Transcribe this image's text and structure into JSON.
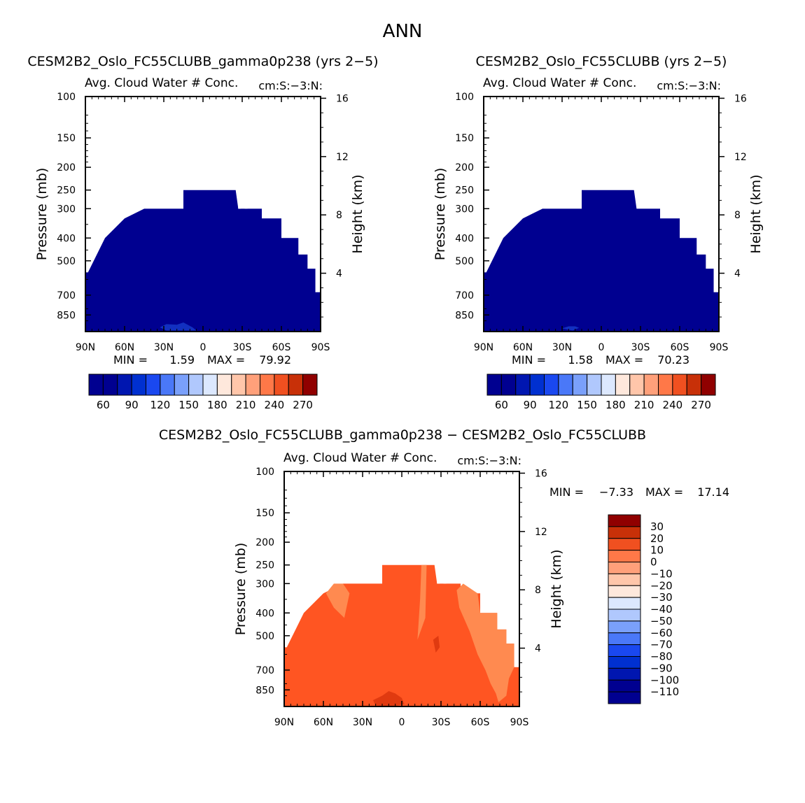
{
  "page_title": "ANN",
  "colors": {
    "base_fill": "#000090",
    "base_fill_low": "#1230c0",
    "diff_fill": "#ff5522",
    "diff_fill_light": "#ff8a50",
    "diff_fill_dark": "#e03a10",
    "base_scale": [
      "#000090",
      "#0016b0",
      "#0030d0",
      "#1a48f0",
      "#4a78f8",
      "#7aa0fb",
      "#b0c8fd",
      "#dce8fe",
      "#fee8dc",
      "#ffc6aa",
      "#ffa07a",
      "#ff7848",
      "#f05020",
      "#c83008",
      "#900000"
    ],
    "diff_scale": [
      "#000090",
      "#0016b0",
      "#0030d0",
      "#1a48f0",
      "#4a78f8",
      "#7aa0fb",
      "#b0c8fd",
      "#dce8fe",
      "#fee8dc",
      "#ffc6aa",
      "#ffa07a",
      "#ff7848",
      "#f05020",
      "#c83008",
      "#900000"
    ]
  },
  "chart_data": [
    {
      "type": "heatmap",
      "id": "panel-left",
      "title": "CESM2B2_Oslo_FC55CLUBB_gamma0p238 (yrs 2−5)",
      "subtitle": "Avg. Cloud Water # Conc.",
      "units": "cm:S:−3:N:",
      "ylabel": "Pressure (mb)",
      "y2label": "Height (km)",
      "x_ticks": [
        "90N",
        "60N",
        "30N",
        "0",
        "30S",
        "60S",
        "90S"
      ],
      "y_ticks": [
        "100",
        "150",
        "200",
        "250",
        "300",
        "400",
        "500",
        "700",
        "850"
      ],
      "y_tick_values": [
        100,
        150,
        200,
        250,
        300,
        400,
        500,
        700,
        850
      ],
      "y2_ticks": [
        "16",
        "12",
        "8",
        "4"
      ],
      "y2_tick_values": [
        16,
        12,
        8,
        4
      ],
      "xlim": [
        90,
        -90
      ],
      "ylim": [
        100,
        1000
      ],
      "min_label": "MIN =",
      "min": "1.59",
      "max_label": "MAX =",
      "max": "79.92",
      "colorbar_labels": [
        "60",
        "90",
        "120",
        "150",
        "180",
        "210",
        "240",
        "270"
      ],
      "colorbar_levels": [
        30,
        45,
        60,
        75,
        90,
        105,
        120,
        135,
        150,
        165,
        180,
        195,
        210,
        225,
        240,
        255,
        270
      ],
      "field_top_pressure": [
        {
          "lat": 90,
          "p": 560
        },
        {
          "lat": 88,
          "p": 560
        },
        {
          "lat": 75,
          "p": 400
        },
        {
          "lat": 60,
          "p": 330
        },
        {
          "lat": 45,
          "p": 300
        },
        {
          "lat": 15,
          "p": 300
        },
        {
          "lat": 15,
          "p": 250
        },
        {
          "lat": -25,
          "p": 250
        },
        {
          "lat": -27,
          "p": 300
        },
        {
          "lat": -45,
          "p": 300
        },
        {
          "lat": -45,
          "p": 330
        },
        {
          "lat": -60,
          "p": 330
        },
        {
          "lat": -60,
          "p": 400
        },
        {
          "lat": -73,
          "p": 400
        },
        {
          "lat": -73,
          "p": 470
        },
        {
          "lat": -80,
          "p": 470
        },
        {
          "lat": -80,
          "p": 540
        },
        {
          "lat": -86,
          "p": 540
        },
        {
          "lat": -86,
          "p": 680
        },
        {
          "lat": -90,
          "p": 680
        }
      ],
      "field_bottom_pressure": 1000,
      "field_value": "low",
      "gap_lats": [
        -28,
        -33
      ],
      "patch_value": "second-lowest",
      "patch": [
        {
          "lat": 33,
          "p": 960
        },
        {
          "lat": 28,
          "p": 930
        },
        {
          "lat": 20,
          "p": 935
        },
        {
          "lat": 15,
          "p": 915
        },
        {
          "lat": 8,
          "p": 960
        },
        {
          "lat": 5,
          "p": 990
        },
        {
          "lat": 28,
          "p": 990
        }
      ]
    },
    {
      "type": "heatmap",
      "id": "panel-right",
      "title": "CESM2B2_Oslo_FC55CLUBB (yrs 2−5)",
      "subtitle": "Avg. Cloud Water # Conc.",
      "units": "cm:S:−3:N:",
      "ylabel": "Pressure (mb)",
      "y2label": "Height (km)",
      "x_ticks": [
        "90N",
        "60N",
        "30N",
        "0",
        "30S",
        "60S",
        "90S"
      ],
      "y_ticks": [
        "100",
        "150",
        "200",
        "250",
        "300",
        "400",
        "500",
        "700",
        "850"
      ],
      "y_tick_values": [
        100,
        150,
        200,
        250,
        300,
        400,
        500,
        700,
        850
      ],
      "y2_ticks": [
        "16",
        "12",
        "8",
        "4"
      ],
      "y2_tick_values": [
        16,
        12,
        8,
        4
      ],
      "xlim": [
        90,
        -90
      ],
      "ylim": [
        100,
        1000
      ],
      "min_label": "MIN =",
      "min": "1.58",
      "max_label": "MAX =",
      "max": "70.23",
      "colorbar_labels": [
        "60",
        "90",
        "120",
        "150",
        "180",
        "210",
        "240",
        "270"
      ],
      "colorbar_levels": [
        30,
        45,
        60,
        75,
        90,
        105,
        120,
        135,
        150,
        165,
        180,
        195,
        210,
        225,
        240,
        255,
        270
      ],
      "field_top_pressure": [
        {
          "lat": 90,
          "p": 560
        },
        {
          "lat": 88,
          "p": 560
        },
        {
          "lat": 75,
          "p": 400
        },
        {
          "lat": 60,
          "p": 330
        },
        {
          "lat": 45,
          "p": 300
        },
        {
          "lat": 15,
          "p": 300
        },
        {
          "lat": 15,
          "p": 250
        },
        {
          "lat": -25,
          "p": 250
        },
        {
          "lat": -27,
          "p": 300
        },
        {
          "lat": -45,
          "p": 300
        },
        {
          "lat": -45,
          "p": 330
        },
        {
          "lat": -60,
          "p": 330
        },
        {
          "lat": -60,
          "p": 400
        },
        {
          "lat": -73,
          "p": 400
        },
        {
          "lat": -73,
          "p": 470
        },
        {
          "lat": -80,
          "p": 470
        },
        {
          "lat": -80,
          "p": 540
        },
        {
          "lat": -86,
          "p": 540
        },
        {
          "lat": -86,
          "p": 680
        },
        {
          "lat": -90,
          "p": 680
        }
      ],
      "field_bottom_pressure": 1000,
      "field_value": "low",
      "gap_lats": [],
      "patch_value": "second-lowest",
      "patch": [
        {
          "lat": 30,
          "p": 970
        },
        {
          "lat": 25,
          "p": 950
        },
        {
          "lat": 20,
          "p": 950
        },
        {
          "lat": 17,
          "p": 965
        },
        {
          "lat": 22,
          "p": 990
        }
      ]
    },
    {
      "type": "heatmap",
      "id": "panel-diff",
      "title": "CESM2B2_Oslo_FC55CLUBB_gamma0p238 − CESM2B2_Oslo_FC55CLUBB",
      "subtitle": "Avg. Cloud Water # Conc.",
      "units": "cm:S:−3:N:",
      "ylabel": "Pressure (mb)",
      "y2label": "Height (km)",
      "x_ticks": [
        "90N",
        "60N",
        "30N",
        "0",
        "30S",
        "60S",
        "90S"
      ],
      "y_ticks": [
        "100",
        "150",
        "200",
        "250",
        "300",
        "400",
        "500",
        "700",
        "850"
      ],
      "y_tick_values": [
        100,
        150,
        200,
        250,
        300,
        400,
        500,
        700,
        850
      ],
      "y2_ticks": [
        "16",
        "12",
        "8",
        "4"
      ],
      "y2_tick_values": [
        16,
        12,
        8,
        4
      ],
      "xlim": [
        90,
        -90
      ],
      "ylim": [
        100,
        1000
      ],
      "min_label": "MIN =",
      "min": "−7.33",
      "max_label": "MAX =",
      "max": "17.14",
      "colorbar_labels": [
        "30",
        "20",
        "10",
        "0",
        "−10",
        "−20",
        "−30",
        "−40",
        "−50",
        "−60",
        "−70",
        "−80",
        "−90",
        "−100",
        "−110"
      ],
      "colorbar_levels": [
        30,
        20,
        10,
        0,
        -10,
        -20,
        -30,
        -40,
        -50,
        -60,
        -70,
        -80,
        -90,
        -100,
        -110
      ],
      "field_value": "0 to 10",
      "light_region_value": "−10 to 0",
      "dark_region_value": "10 to 20"
    }
  ]
}
